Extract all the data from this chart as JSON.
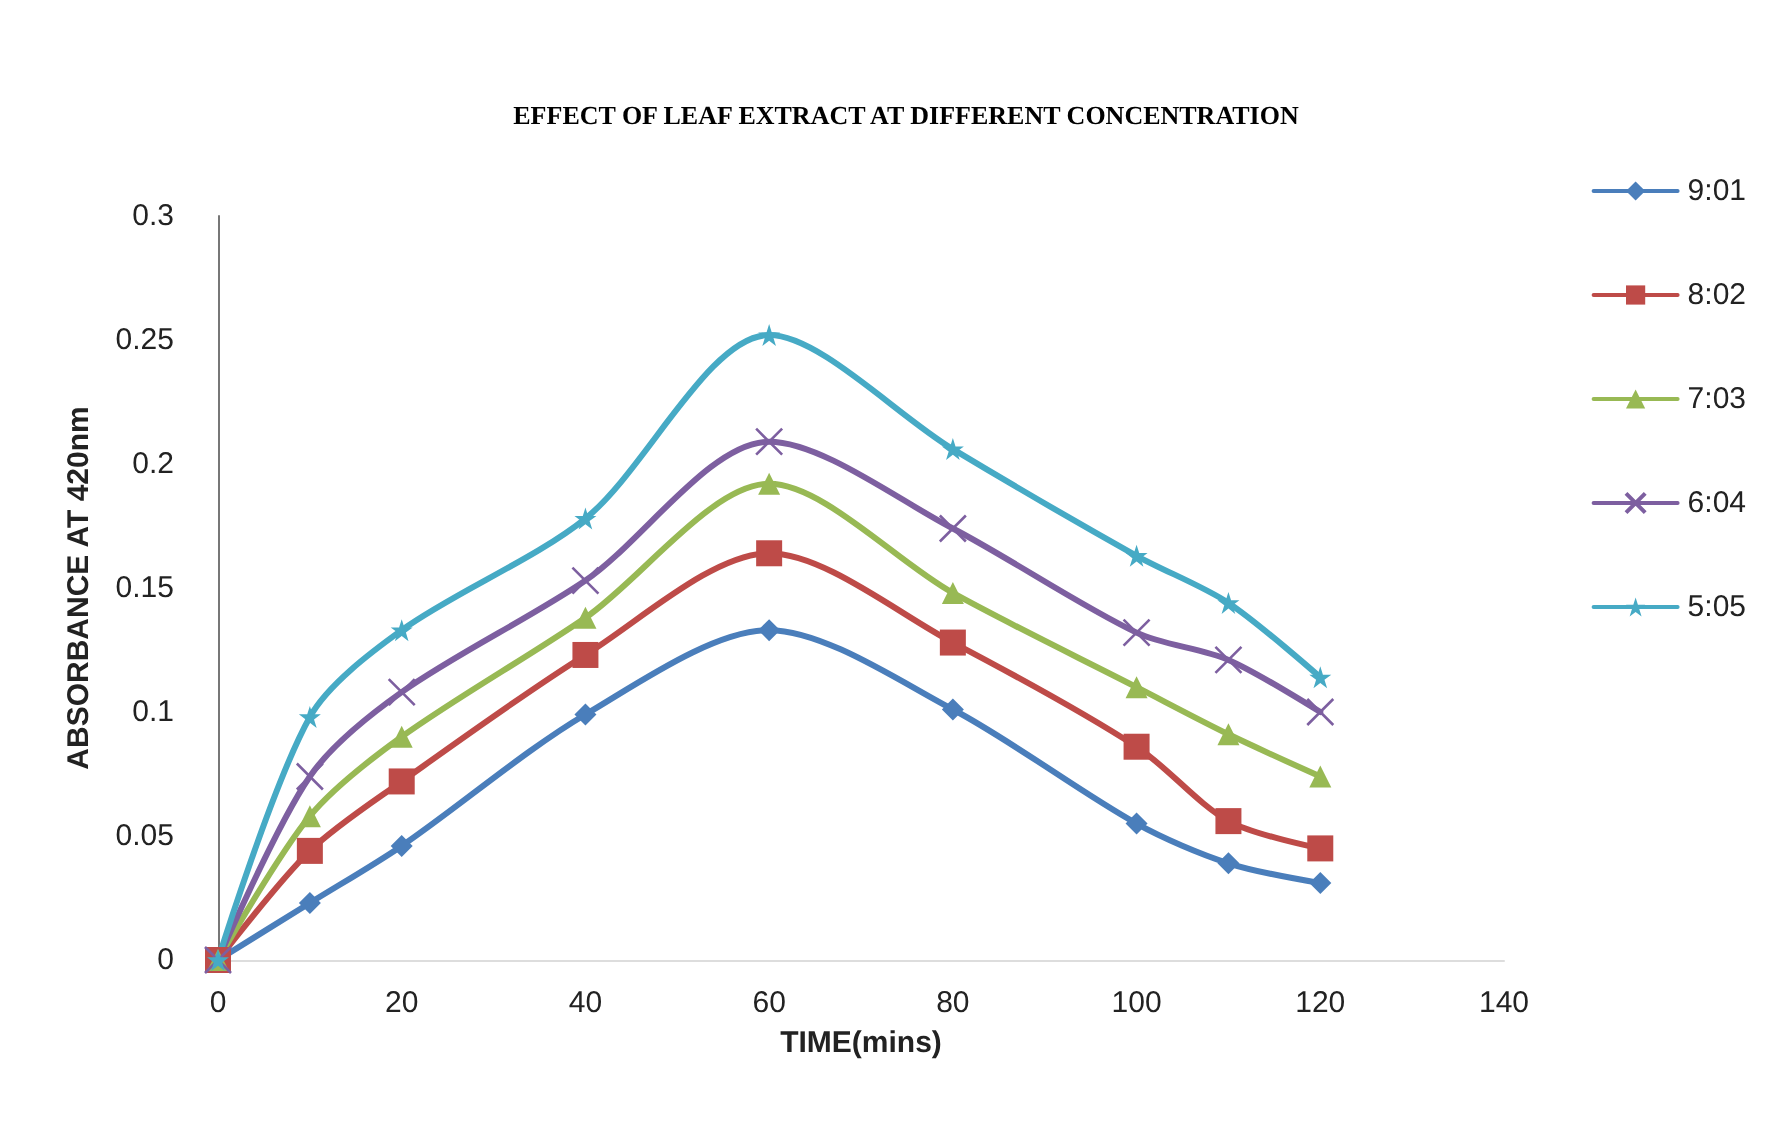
{
  "chart_data": {
    "type": "line",
    "title": "EFFECT OF LEAF EXTRACT AT DIFFERENT CONCENTRATION",
    "xlabel": "TIME(mins)",
    "ylabel": "ABSORBANCE AT 420nm",
    "x": [
      0,
      10,
      20,
      40,
      60,
      80,
      100,
      110,
      120
    ],
    "series": [
      {
        "name": "9:01",
        "color": "#4a7ebb",
        "marker": "diamond",
        "values": [
          0,
          0.023,
          0.046,
          0.099,
          0.133,
          0.101,
          0.055,
          0.039,
          0.031
        ]
      },
      {
        "name": "8:02",
        "color": "#be4b48",
        "marker": "square",
        "values": [
          0,
          0.044,
          0.072,
          0.123,
          0.164,
          0.128,
          0.086,
          0.056,
          0.045
        ]
      },
      {
        "name": "7:03",
        "color": "#98b954",
        "marker": "triangle",
        "values": [
          0,
          0.058,
          0.09,
          0.138,
          0.192,
          0.148,
          0.11,
          0.091,
          0.074
        ]
      },
      {
        "name": "6:04",
        "color": "#7d5fa0",
        "marker": "cross",
        "values": [
          0,
          0.074,
          0.108,
          0.153,
          0.209,
          0.174,
          0.132,
          0.121,
          0.1
        ]
      },
      {
        "name": "5:05",
        "color": "#46aac5",
        "marker": "star",
        "values": [
          0,
          0.098,
          0.133,
          0.178,
          0.252,
          0.206,
          0.163,
          0.144,
          0.114
        ]
      }
    ],
    "xlim": [
      0,
      140
    ],
    "xticks": [
      0,
      20,
      40,
      60,
      80,
      100,
      120,
      140
    ],
    "ylim": [
      0,
      0.3
    ],
    "yticks": [
      0,
      0.05,
      0.1,
      0.15,
      0.2,
      0.25,
      0.3
    ],
    "grid": false,
    "legend": "right",
    "line_style": "solid"
  }
}
